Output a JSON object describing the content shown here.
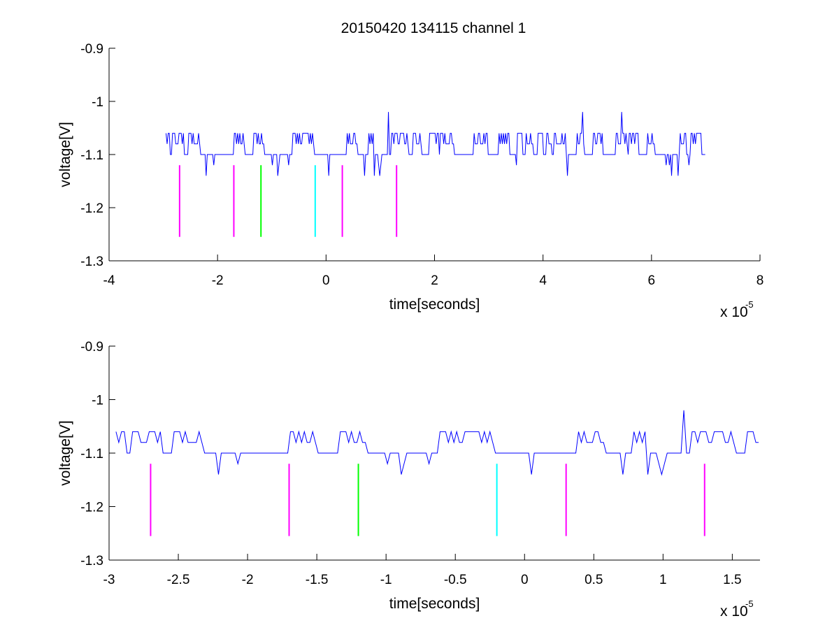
{
  "figure": {
    "title": "20150420 134115 channel 1"
  },
  "chart_data": [
    {
      "type": "line",
      "xlabel": "time[seconds]",
      "ylabel": "voltage[V]",
      "x_exponent_label": "x 10",
      "x_exponent": "-5",
      "x_scale": 1e-05,
      "xlim": [
        -4,
        8
      ],
      "ylim": [
        -1.3,
        -0.9
      ],
      "xticks": [
        "-4",
        "-2",
        "0",
        "2",
        "4",
        "6",
        "8"
      ],
      "xtick_values": [
        -4,
        -2,
        0,
        2,
        4,
        6,
        8
      ],
      "yticks": [
        "-0.9",
        "-1",
        "-1.1",
        "-1.2",
        "-1.3"
      ],
      "ytick_values": [
        -0.9,
        -1.0,
        -1.1,
        -1.2,
        -1.3
      ],
      "grid": false,
      "series": [
        {
          "color": "#0000ff",
          "x_range": [
            -2.95,
            7.0
          ],
          "baseline": -1.1,
          "levels": [
            -1.14,
            -1.12,
            -1.1,
            -1.08,
            -1.06,
            -1.02
          ],
          "spikes": [
            {
              "x": 1.15,
              "y": -1.02
            },
            {
              "x": 4.72,
              "y": -1.02
            },
            {
              "x": 5.45,
              "y": -1.02
            }
          ]
        }
      ],
      "markers": [
        {
          "x": -2.7,
          "y_top": -1.12,
          "y_bottom": -1.255,
          "color": "#ff00ff"
        },
        {
          "x": -1.7,
          "y_top": -1.12,
          "y_bottom": -1.255,
          "color": "#ff00ff"
        },
        {
          "x": -1.2,
          "y_top": -1.12,
          "y_bottom": -1.255,
          "color": "#00ff00"
        },
        {
          "x": -0.2,
          "y_top": -1.12,
          "y_bottom": -1.255,
          "color": "#00ffff"
        },
        {
          "x": 0.3,
          "y_top": -1.12,
          "y_bottom": -1.255,
          "color": "#ff00ff"
        },
        {
          "x": 1.3,
          "y_top": -1.12,
          "y_bottom": -1.255,
          "color": "#ff00ff"
        }
      ]
    },
    {
      "type": "line",
      "xlabel": "time[seconds]",
      "ylabel": "voltage[V]",
      "x_exponent_label": "x 10",
      "x_exponent": "-5",
      "x_scale": 1e-05,
      "xlim": [
        -3.0,
        1.7
      ],
      "ylim": [
        -1.3,
        -0.9
      ],
      "xticks": [
        "-3",
        "-2.5",
        "-2",
        "-1.5",
        "-1",
        "-0.5",
        "0",
        "0.5",
        "1",
        "1.5"
      ],
      "xtick_values": [
        -3,
        -2.5,
        -2,
        -1.5,
        -1,
        -0.5,
        0,
        0.5,
        1,
        1.5
      ],
      "yticks": [
        "-0.9",
        "-1",
        "-1.1",
        "-1.2",
        "-1.3"
      ],
      "ytick_values": [
        -0.9,
        -1.0,
        -1.1,
        -1.2,
        -1.3
      ],
      "grid": false,
      "series": [
        {
          "color": "#0000ff",
          "x_range": [
            -2.95,
            1.7
          ],
          "baseline": -1.1,
          "levels": [
            -1.14,
            -1.12,
            -1.1,
            -1.08,
            -1.06,
            -1.02
          ],
          "spikes": [
            {
              "x": 1.15,
              "y": -1.02
            }
          ]
        }
      ],
      "markers": [
        {
          "x": -2.7,
          "y_top": -1.12,
          "y_bottom": -1.255,
          "color": "#ff00ff"
        },
        {
          "x": -1.7,
          "y_top": -1.12,
          "y_bottom": -1.255,
          "color": "#ff00ff"
        },
        {
          "x": -1.2,
          "y_top": -1.12,
          "y_bottom": -1.255,
          "color": "#00ff00"
        },
        {
          "x": -0.2,
          "y_top": -1.12,
          "y_bottom": -1.255,
          "color": "#00ffff"
        },
        {
          "x": 0.3,
          "y_top": -1.12,
          "y_bottom": -1.255,
          "color": "#ff00ff"
        },
        {
          "x": 1.3,
          "y_top": -1.12,
          "y_bottom": -1.255,
          "color": "#ff00ff"
        }
      ]
    }
  ]
}
